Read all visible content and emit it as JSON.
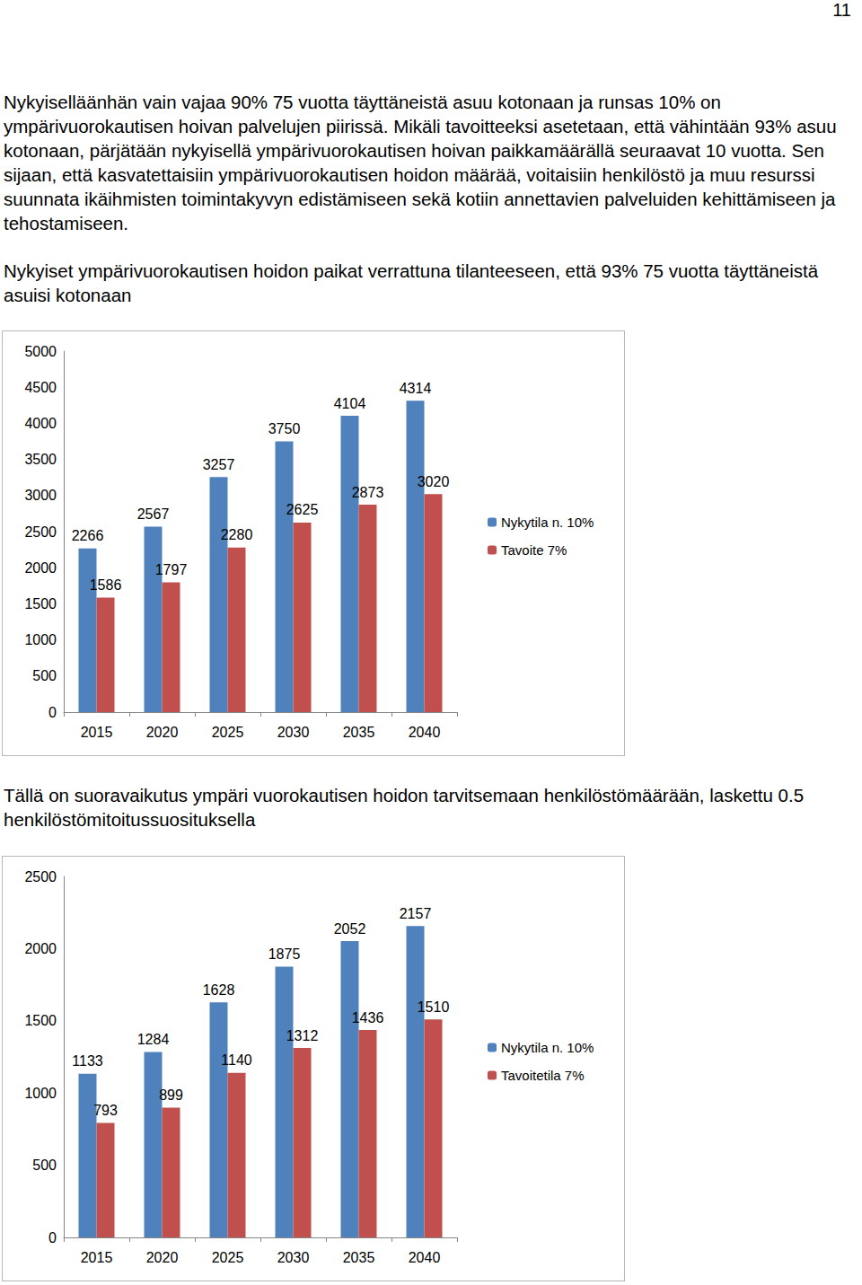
{
  "page_number": "11",
  "paragraphs": [
    "Nykyiselläänhän vain vajaa 90% 75 vuotta täyttäneistä asuu kotonaan ja runsas 10% on ympärivuorokautisen hoivan palvelujen piirissä. Mikäli tavoitteeksi asetetaan, että vähintään 93% asuu kotonaan, pärjätään nykyisellä ympärivuorokautisen hoivan paikkamäärällä seuraavat 10 vuotta. Sen sijaan, että kasvatettaisiin ympärivuorokautisen hoidon määrää, voitaisiin henkilöstö ja muu resurssi suunnata ikäihmisten toimintakyvyn edistämiseen sekä kotiin annettavien palveluiden kehittämiseen ja tehostamiseen."
  ],
  "chart_data": [
    {
      "type": "bar",
      "caption": "Nykyiset ympärivuorokautisen hoidon paikat verrattuna tilanteeseen, että 93% 75 vuotta täyttäneistä asuisi kotonaan",
      "categories": [
        "2015",
        "2020",
        "2025",
        "2030",
        "2035",
        "2040"
      ],
      "series": [
        {
          "name": "Nykytila n. 10%",
          "color": "#4f81bd",
          "values": [
            2266,
            2567,
            3257,
            3750,
            4104,
            4314
          ]
        },
        {
          "name": "Tavoite 7%",
          "color": "#c0504d",
          "values": [
            1586,
            1797,
            2280,
            2625,
            2873,
            3020
          ]
        }
      ],
      "ylim": [
        0,
        5000
      ],
      "yticks": [
        0,
        500,
        1000,
        1500,
        2000,
        2500,
        3000,
        3500,
        4000,
        4500,
        5000
      ],
      "grid": false,
      "legend": "right",
      "data_labels": true
    },
    {
      "type": "bar",
      "caption": "Tällä on suoravaikutus ympäri vuorokautisen hoidon tarvitsemaan henkilöstömäärään, laskettu 0.5 henkilöstömitoitussuosituksella",
      "categories": [
        "2015",
        "2020",
        "2025",
        "2030",
        "2035",
        "2040"
      ],
      "series": [
        {
          "name": "Nykytila n. 10%",
          "color": "#4f81bd",
          "values": [
            1133,
            1284,
            1628,
            1875,
            2052,
            2157
          ]
        },
        {
          "name": "Tavoitetila 7%",
          "color": "#c0504d",
          "values": [
            793,
            899,
            1140,
            1312,
            1436,
            1510
          ]
        }
      ],
      "ylim": [
        0,
        2500
      ],
      "yticks": [
        0,
        500,
        1000,
        1500,
        2000,
        2500
      ],
      "grid": false,
      "legend": "right",
      "data_labels": true
    }
  ]
}
